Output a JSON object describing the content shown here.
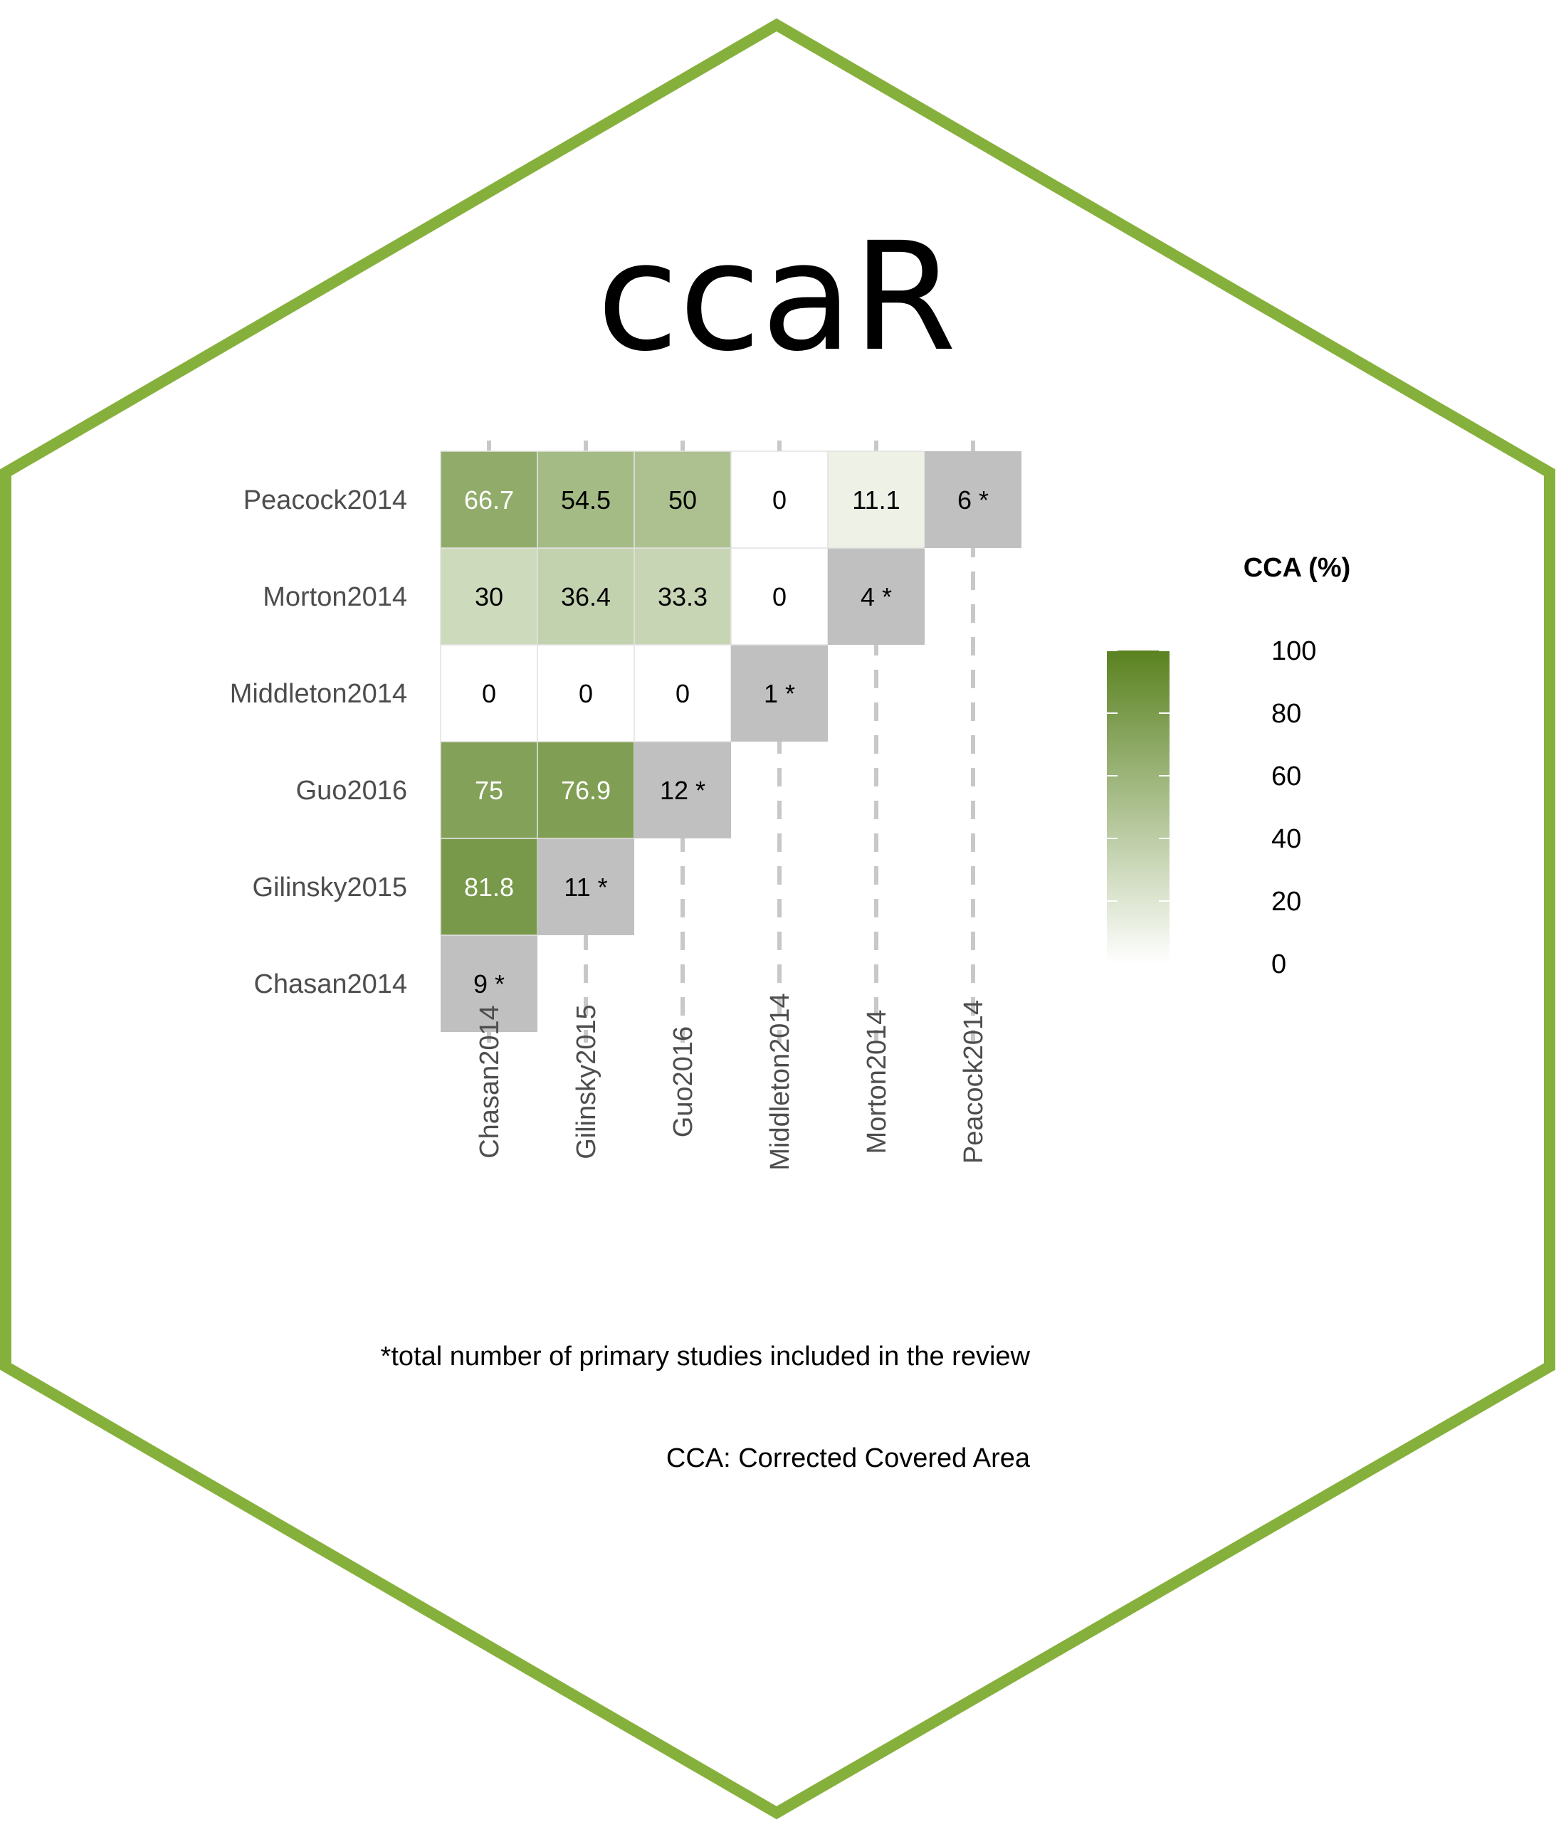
{
  "logo": {
    "title": "ccaR",
    "border_color": "#86b03c"
  },
  "chart_data": {
    "type": "heatmap",
    "title": "",
    "xlabel": "",
    "ylabel": "",
    "x_categories": [
      "Chasan2014",
      "Gilinsky2015",
      "Guo2016",
      "Middleton2014",
      "Morton2014",
      "Peacock2014"
    ],
    "y_categories": [
      "Chasan2014",
      "Gilinsky2015",
      "Guo2016",
      "Middleton2014",
      "Morton2014",
      "Peacock2014"
    ],
    "cells": [
      {
        "x": "Chasan2014",
        "y": "Chasan2014",
        "value": 9,
        "diagonal": true,
        "label": "9 *"
      },
      {
        "x": "Chasan2014",
        "y": "Gilinsky2015",
        "value": 81.8,
        "label": "81.8"
      },
      {
        "x": "Gilinsky2015",
        "y": "Gilinsky2015",
        "value": 11,
        "diagonal": true,
        "label": "11 *"
      },
      {
        "x": "Chasan2014",
        "y": "Guo2016",
        "value": 75,
        "label": "75"
      },
      {
        "x": "Gilinsky2015",
        "y": "Guo2016",
        "value": 76.9,
        "label": "76.9"
      },
      {
        "x": "Guo2016",
        "y": "Guo2016",
        "value": 12,
        "diagonal": true,
        "label": "12 *"
      },
      {
        "x": "Chasan2014",
        "y": "Middleton2014",
        "value": 0,
        "label": "0"
      },
      {
        "x": "Gilinsky2015",
        "y": "Middleton2014",
        "value": 0,
        "label": "0"
      },
      {
        "x": "Guo2016",
        "y": "Middleton2014",
        "value": 0,
        "label": "0"
      },
      {
        "x": "Middleton2014",
        "y": "Middleton2014",
        "value": 1,
        "diagonal": true,
        "label": "1 *"
      },
      {
        "x": "Chasan2014",
        "y": "Morton2014",
        "value": 30,
        "label": "30"
      },
      {
        "x": "Gilinsky2015",
        "y": "Morton2014",
        "value": 36.4,
        "label": "36.4"
      },
      {
        "x": "Guo2016",
        "y": "Morton2014",
        "value": 33.3,
        "label": "33.3"
      },
      {
        "x": "Middleton2014",
        "y": "Morton2014",
        "value": 0,
        "label": "0"
      },
      {
        "x": "Morton2014",
        "y": "Morton2014",
        "value": 4,
        "diagonal": true,
        "label": "4 *"
      },
      {
        "x": "Chasan2014",
        "y": "Peacock2014",
        "value": 66.7,
        "label": "66.7"
      },
      {
        "x": "Gilinsky2015",
        "y": "Peacock2014",
        "value": 54.5,
        "label": "54.5"
      },
      {
        "x": "Guo2016",
        "y": "Peacock2014",
        "value": 50,
        "label": "50"
      },
      {
        "x": "Middleton2014",
        "y": "Peacock2014",
        "value": 0,
        "label": "0"
      },
      {
        "x": "Morton2014",
        "y": "Peacock2014",
        "value": 11.1,
        "label": "11.1"
      },
      {
        "x": "Peacock2014",
        "y": "Peacock2014",
        "value": 6,
        "diagonal": true,
        "label": "6 *"
      }
    ],
    "color_scale": {
      "low": "#ffffff",
      "high": "#5a8220",
      "diagonal_fill": "#c0c0c0",
      "range": [
        0,
        100
      ]
    },
    "legend": {
      "title": "CCA (%)",
      "ticks": [
        100,
        80,
        60,
        40,
        20,
        0
      ],
      "position": "right"
    },
    "grid": "dashed",
    "footnotes": [
      "*total number of primary studies included in the review",
      "CCA: Corrected Covered Area"
    ]
  }
}
